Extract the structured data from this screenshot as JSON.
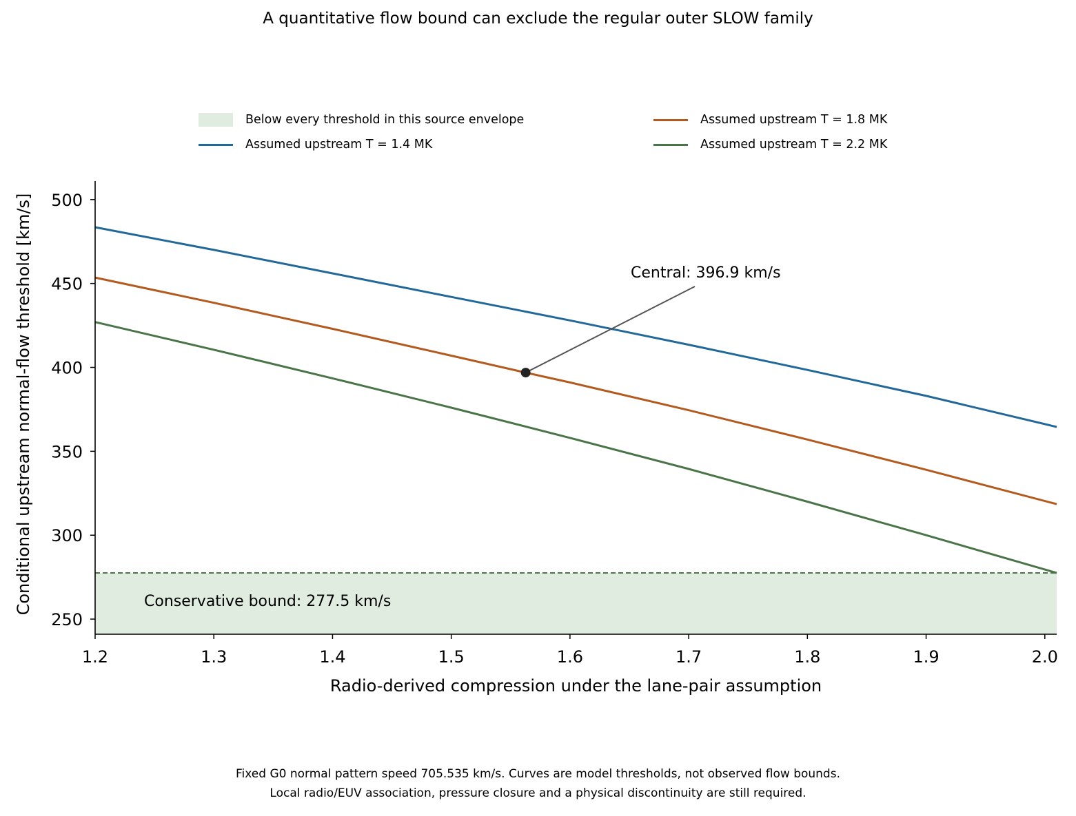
{
  "chart_data": {
    "type": "line",
    "title": "A quantitative flow bound can exclude the regular outer SLOW family",
    "xlabel": "Radio-derived compression under the lane-pair assumption",
    "ylabel": "Conditional upstream normal-flow threshold [km/s]",
    "xlim": [
      1.2,
      2.01
    ],
    "ylim": [
      241,
      511
    ],
    "xticks": [
      1.2,
      1.3,
      1.4,
      1.5,
      1.6,
      1.7,
      1.8,
      1.9,
      2.0
    ],
    "xtick_labels": [
      "1.2",
      "1.3",
      "1.4",
      "1.5",
      "1.6",
      "1.7",
      "1.8",
      "1.9",
      "2.0"
    ],
    "yticks": [
      250,
      300,
      350,
      400,
      450,
      500
    ],
    "ytick_labels": [
      "250",
      "300",
      "350",
      "400",
      "450",
      "500"
    ],
    "grid": false,
    "legend_placement": "above plot, two columns",
    "series": [
      {
        "name": "Assumed upstream T = 1.4 MK",
        "color": "#22699a",
        "x": [
          1.2,
          1.3,
          1.4,
          1.5,
          1.6,
          1.7,
          1.8,
          1.9,
          2.01
        ],
        "y": [
          483.5,
          470.0,
          456.0,
          442.0,
          428.0,
          413.5,
          398.5,
          383.0,
          364.5
        ]
      },
      {
        "name": "Assumed upstream T = 1.8 MK",
        "color": "#b35a1f",
        "x": [
          1.2,
          1.3,
          1.4,
          1.5,
          1.5627,
          1.6,
          1.7,
          1.8,
          1.9,
          2.01
        ],
        "y": [
          453.5,
          438.5,
          423.0,
          407.0,
          396.9,
          391.0,
          374.5,
          357.0,
          339.0,
          318.5
        ]
      },
      {
        "name": "Assumed upstream T = 2.2 MK",
        "color": "#4a7548",
        "x": [
          1.2,
          1.3,
          1.4,
          1.5,
          1.6,
          1.7,
          1.8,
          1.9,
          2.01
        ],
        "y": [
          427.0,
          410.5,
          393.5,
          376.0,
          358.0,
          339.5,
          320.0,
          300.0,
          277.5
        ]
      }
    ],
    "band": {
      "name": "Below every threshold in this source envelope",
      "color": "#e0ecdf",
      "y_top": 277.5
    },
    "bound_line": {
      "y": 277.5,
      "color": "#4a7548"
    },
    "central_point": {
      "x": 1.5627,
      "y": 396.9,
      "color": "#222222"
    },
    "annotations": {
      "central": "Central: 396.9 km/s",
      "conservative": "Conservative bound: 277.5 km/s"
    },
    "caption_lines": [
      "Fixed G0 normal pattern speed 705.535 km/s. Curves are model thresholds, not observed flow bounds.",
      "Local radio/EUV association, pressure closure and a physical discontinuity are still required."
    ]
  }
}
